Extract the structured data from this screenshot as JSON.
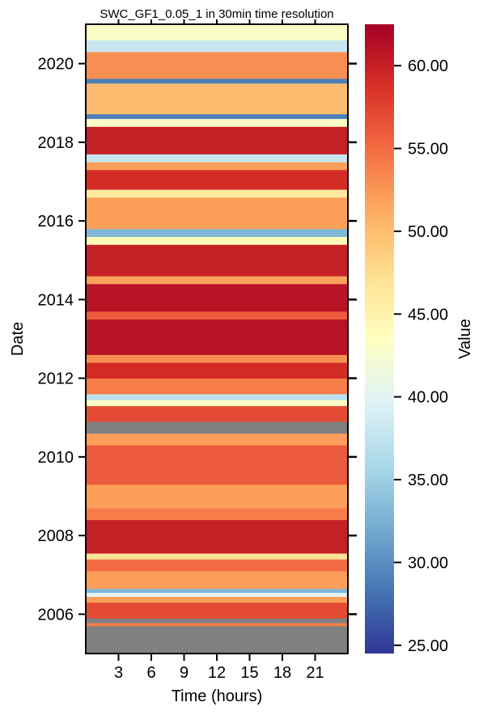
{
  "chart_data": {
    "type": "heatmap",
    "title": "SWC_GF1_0.05_1 in 30min time resolution",
    "xlabel": "Time (hours)",
    "ylabel": "Date",
    "x_ticks": [
      "3",
      "6",
      "9",
      "12",
      "15",
      "18",
      "21"
    ],
    "x_range": [
      0,
      24
    ],
    "y_ticks": [
      "2006",
      "2008",
      "2010",
      "2012",
      "2014",
      "2016",
      "2018",
      "2020"
    ],
    "y_range": [
      2005.0,
      2021.0
    ],
    "colorbar": {
      "label": "Value",
      "ticks": [
        "25.00",
        "30.00",
        "35.00",
        "40.00",
        "45.00",
        "50.00",
        "55.00",
        "60.00"
      ],
      "range": [
        24.5,
        62.5
      ],
      "colors": [
        "#313695",
        "#4575b4",
        "#74add1",
        "#abd9e9",
        "#e0f3f8",
        "#ffffbf",
        "#fee090",
        "#fdae61",
        "#f46d43",
        "#d73027",
        "#a50026"
      ]
    },
    "missing_color": "#808080",
    "bands": [
      {
        "from": 2005.0,
        "to": 2005.7,
        "value": null
      },
      {
        "from": 2005.7,
        "to": 2005.78,
        "value": 54
      },
      {
        "from": 2005.78,
        "to": 2005.9,
        "value": null
      },
      {
        "from": 2005.9,
        "to": 2006.3,
        "value": 57
      },
      {
        "from": 2006.3,
        "to": 2006.45,
        "value": 52
      },
      {
        "from": 2006.45,
        "to": 2006.55,
        "value": 40
      },
      {
        "from": 2006.55,
        "to": 2006.65,
        "value": 33
      },
      {
        "from": 2006.65,
        "to": 2007.1,
        "value": 52
      },
      {
        "from": 2007.1,
        "to": 2007.4,
        "value": 55
      },
      {
        "from": 2007.4,
        "to": 2007.55,
        "value": 47
      },
      {
        "from": 2007.55,
        "to": 2008.4,
        "value": 60
      },
      {
        "from": 2008.4,
        "to": 2008.7,
        "value": 54
      },
      {
        "from": 2008.7,
        "to": 2009.3,
        "value": 52
      },
      {
        "from": 2009.3,
        "to": 2010.3,
        "value": 56
      },
      {
        "from": 2010.3,
        "to": 2010.6,
        "value": 52
      },
      {
        "from": 2010.6,
        "to": 2010.9,
        "value": null
      },
      {
        "from": 2010.9,
        "to": 2011.3,
        "value": 57
      },
      {
        "from": 2011.3,
        "to": 2011.45,
        "value": 43
      },
      {
        "from": 2011.45,
        "to": 2011.6,
        "value": 37
      },
      {
        "from": 2011.6,
        "to": 2012.0,
        "value": 54
      },
      {
        "from": 2012.0,
        "to": 2012.4,
        "value": 59
      },
      {
        "from": 2012.4,
        "to": 2012.6,
        "value": 53
      },
      {
        "from": 2012.6,
        "to": 2013.5,
        "value": 61
      },
      {
        "from": 2013.5,
        "to": 2013.7,
        "value": 56
      },
      {
        "from": 2013.7,
        "to": 2014.4,
        "value": 61
      },
      {
        "from": 2014.4,
        "to": 2014.6,
        "value": 52
      },
      {
        "from": 2014.6,
        "to": 2015.4,
        "value": 60
      },
      {
        "from": 2015.4,
        "to": 2015.6,
        "value": 44
      },
      {
        "from": 2015.6,
        "to": 2015.8,
        "value": 33
      },
      {
        "from": 2015.8,
        "to": 2016.6,
        "value": 52
      },
      {
        "from": 2016.6,
        "to": 2016.8,
        "value": 46
      },
      {
        "from": 2016.8,
        "to": 2017.3,
        "value": 59
      },
      {
        "from": 2017.3,
        "to": 2017.5,
        "value": 52
      },
      {
        "from": 2017.5,
        "to": 2017.7,
        "value": 38
      },
      {
        "from": 2017.7,
        "to": 2018.4,
        "value": 60
      },
      {
        "from": 2018.4,
        "to": 2018.6,
        "value": 43
      },
      {
        "from": 2018.6,
        "to": 2018.72,
        "value": 29
      },
      {
        "from": 2018.72,
        "to": 2019.5,
        "value": 50
      },
      {
        "from": 2019.5,
        "to": 2019.62,
        "value": 29
      },
      {
        "from": 2019.62,
        "to": 2020.3,
        "value": 53
      },
      {
        "from": 2020.3,
        "to": 2020.6,
        "value": 38
      },
      {
        "from": 2020.6,
        "to": 2021.0,
        "value": 43
      }
    ]
  }
}
